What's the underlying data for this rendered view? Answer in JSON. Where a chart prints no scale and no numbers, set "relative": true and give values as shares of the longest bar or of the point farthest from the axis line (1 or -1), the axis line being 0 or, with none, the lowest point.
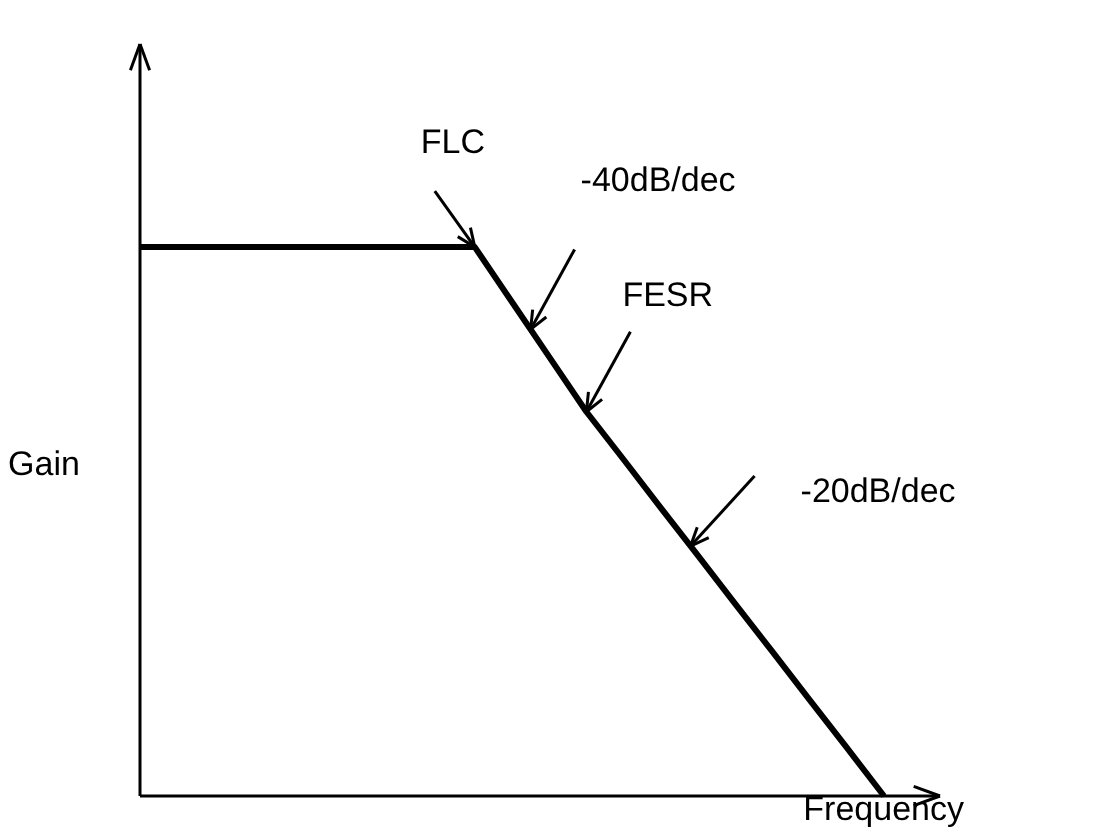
{
  "chart_data": {
    "type": "line",
    "relative": true,
    "xlabel": "Frequency",
    "ylabel": "Gain",
    "categories": [
      null,
      null,
      null,
      null,
      null,
      null,
      null,
      null,
      null,
      null,
      null,
      null,
      null,
      null,
      null,
      null,
      null,
      null,
      null,
      null,
      null
    ],
    "values": [
      1,
      1,
      1,
      1,
      1,
      1,
      1,
      1,
      1,
      1,
      0.9,
      0.8,
      0.7,
      0.613,
      0.525,
      0.438,
      0.35,
      0.263,
      0.175,
      0.088,
      0
    ],
    "color": "#000000",
    "tick_labels": false,
    "annotations": [
      "FLC",
      "-40dB/dec",
      "FESR",
      "-20dB/dec"
    ]
  }
}
